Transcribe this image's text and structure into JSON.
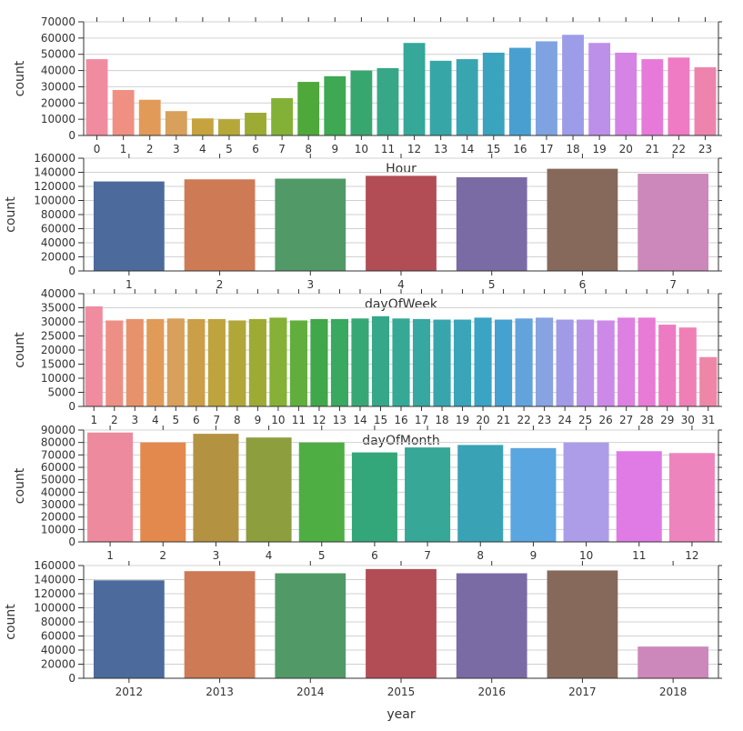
{
  "chart_data": [
    {
      "type": "bar",
      "xlabel": "Hour",
      "ylabel": "count",
      "ylim": [
        0,
        70000
      ],
      "yticks": [
        "0",
        "10000",
        "20000",
        "30000",
        "40000",
        "50000",
        "60000",
        "70000"
      ],
      "categories": [
        "0",
        "1",
        "2",
        "3",
        "4",
        "5",
        "6",
        "7",
        "8",
        "9",
        "10",
        "11",
        "12",
        "13",
        "14",
        "15",
        "16",
        "17",
        "18",
        "19",
        "20",
        "21",
        "22",
        "23"
      ],
      "values": [
        47000,
        28000,
        22000,
        15000,
        10500,
        10000,
        14000,
        23000,
        33000,
        36500,
        40000,
        41500,
        57000,
        46000,
        47000,
        51000,
        54000,
        58000,
        62000,
        57000,
        51000,
        47000,
        48000,
        42000
      ],
      "colors": [
        "#f08ca0",
        "#ef9082",
        "#e29a59",
        "#d8a05a",
        "#c6a33e",
        "#b5a839",
        "#9dab34",
        "#83b137",
        "#4fa83a",
        "#3ea852",
        "#38a76f",
        "#37a787",
        "#35a89a",
        "#37a6a6",
        "#39a5b0",
        "#3aa3bd",
        "#49a0d0",
        "#7ea3e0",
        "#9d9ce8",
        "#bc90e8",
        "#d683e6",
        "#e77ad9",
        "#ee7bc4",
        "#ee84ad"
      ]
    },
    {
      "type": "bar",
      "xlabel": "dayOfWeek",
      "ylabel": "count",
      "ylim": [
        0,
        160000
      ],
      "yticks": [
        "0",
        "20000",
        "40000",
        "60000",
        "80000",
        "100000",
        "120000",
        "140000",
        "160000"
      ],
      "categories": [
        "1",
        "2",
        "3",
        "4",
        "5",
        "6",
        "7"
      ],
      "values": [
        127000,
        130000,
        131000,
        135000,
        133000,
        145000,
        138000
      ],
      "colors": [
        "#4c6a9c",
        "#cd7a55",
        "#519a67",
        "#b24c55",
        "#7b6ba5",
        "#86695a",
        "#cd88bb"
      ]
    },
    {
      "type": "bar",
      "xlabel": "dayOfMonth",
      "ylabel": "count",
      "ylim": [
        0,
        40000
      ],
      "yticks": [
        "0",
        "5000",
        "10000",
        "15000",
        "20000",
        "25000",
        "30000",
        "35000",
        "40000"
      ],
      "categories": [
        "1",
        "2",
        "3",
        "4",
        "5",
        "6",
        "7",
        "8",
        "9",
        "10",
        "11",
        "12",
        "13",
        "14",
        "15",
        "16",
        "17",
        "18",
        "19",
        "20",
        "21",
        "22",
        "23",
        "24",
        "25",
        "26",
        "27",
        "28",
        "29",
        "30",
        "31"
      ],
      "values": [
        35500,
        30500,
        31000,
        31000,
        31200,
        31000,
        31000,
        30500,
        31000,
        31500,
        30500,
        31000,
        31000,
        31200,
        32000,
        31200,
        31000,
        30800,
        30800,
        31500,
        30800,
        31200,
        31500,
        30800,
        30800,
        30500,
        31500,
        31500,
        29000,
        28000,
        17500
      ],
      "colors": [
        "#f08ca0",
        "#ee8f86",
        "#e8926c",
        "#e19b58",
        "#d8a05a",
        "#ca9f47",
        "#bfa33c",
        "#b1a739",
        "#9dab34",
        "#86b036",
        "#62ae3c",
        "#40a74a",
        "#39a861",
        "#38a776",
        "#37a789",
        "#36a896",
        "#37a7a2",
        "#38a5ad",
        "#3aa4b8",
        "#3ba3c4",
        "#45a1cf",
        "#63a3dc",
        "#88a3e2",
        "#a19ae7",
        "#b893e8",
        "#cc89e7",
        "#dd80e1",
        "#e87bd5",
        "#ed7bc3",
        "#ef80b5",
        "#ee86a8"
      ]
    },
    {
      "type": "bar",
      "xlabel": "",
      "ylabel": "count",
      "ylim": [
        0,
        90000
      ],
      "yticks": [
        "0",
        "10000",
        "20000",
        "30000",
        "40000",
        "50000",
        "60000",
        "70000",
        "80000",
        "90000"
      ],
      "categories": [
        "1",
        "2",
        "3",
        "4",
        "5",
        "6",
        "7",
        "8",
        "9",
        "10",
        "11",
        "12"
      ],
      "values": [
        88000,
        80000,
        87000,
        84000,
        80000,
        72000,
        76000,
        78000,
        75500,
        80000,
        73000,
        71500
      ],
      "colors": [
        "#ee8a9d",
        "#e4894d",
        "#b39342",
        "#8d9e3e",
        "#4fae43",
        "#34a77a",
        "#37a797",
        "#39a3b5",
        "#5aa6e0",
        "#ad9de9",
        "#e07be6",
        "#ee84bd"
      ]
    },
    {
      "type": "bar",
      "xlabel": "year",
      "ylabel": "count",
      "ylim": [
        0,
        160000
      ],
      "yticks": [
        "0",
        "20000",
        "40000",
        "60000",
        "80000",
        "100000",
        "120000",
        "140000",
        "160000"
      ],
      "categories": [
        "2012",
        "2013",
        "2014",
        "2015",
        "2016",
        "2017",
        "2018"
      ],
      "values": [
        139000,
        152000,
        149000,
        155000,
        149000,
        153000,
        45000
      ],
      "colors": [
        "#4c6a9c",
        "#cd7a55",
        "#519a67",
        "#b24c55",
        "#7b6ba5",
        "#86695a",
        "#cd88bb"
      ]
    }
  ]
}
